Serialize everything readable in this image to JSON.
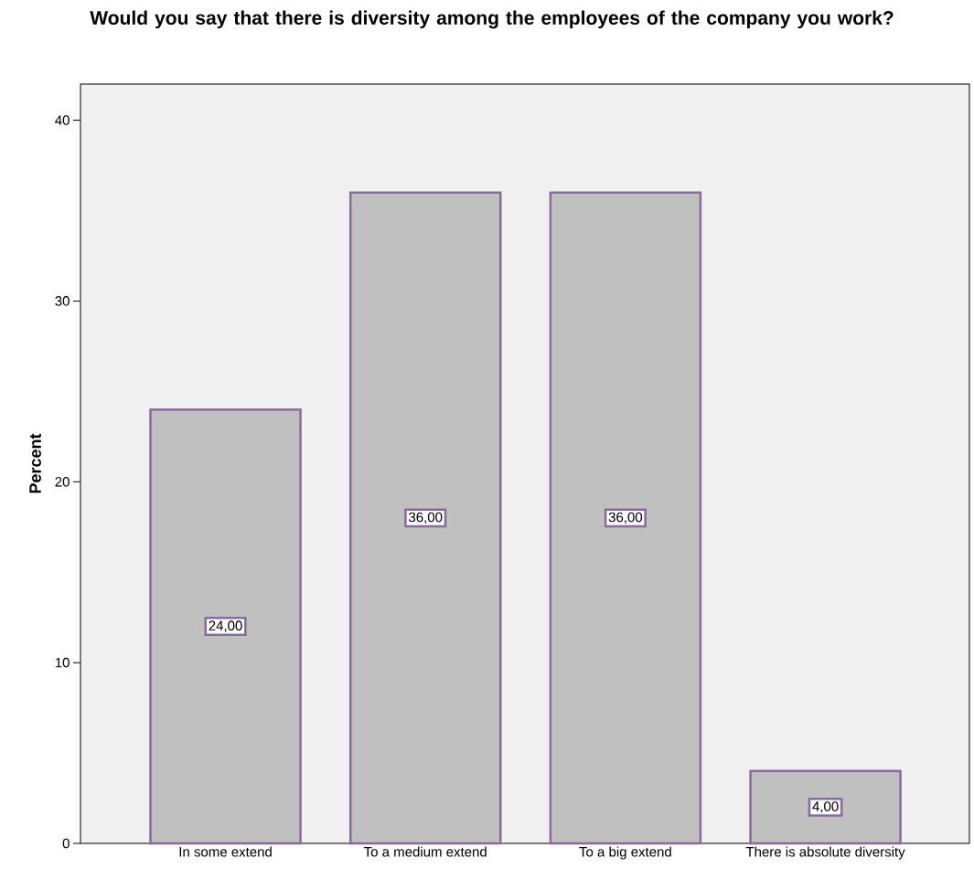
{
  "chart_data": {
    "type": "bar",
    "title": "Would you say that there is diversity among the employees of the company you work?",
    "ylabel": "Percent",
    "categories": [
      "In some extend",
      "To a medium extend",
      "To a big extend",
      "There is absolute diversity"
    ],
    "values": [
      24,
      36,
      36,
      4
    ],
    "value_labels": [
      "24,00",
      "36,00",
      "36,00",
      "4,00"
    ],
    "color": "#c0c0c0",
    "ylim": [
      0,
      42
    ],
    "yticks": [
      0,
      10,
      20,
      30,
      40
    ]
  }
}
